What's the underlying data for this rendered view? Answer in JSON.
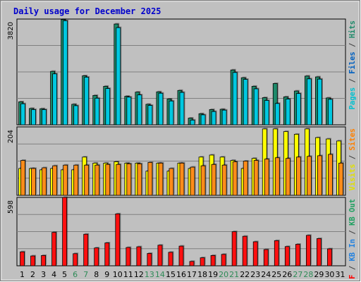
{
  "chart_data": {
    "type": "bar",
    "title": "Daily usage for December 2025",
    "background": "#c0c0c0",
    "categories": [
      "1",
      "2",
      "3",
      "4",
      "5",
      "6",
      "7",
      "8",
      "9",
      "10",
      "11",
      "12",
      "13",
      "14",
      "15",
      "16",
      "17",
      "18",
      "19",
      "20",
      "21",
      "22",
      "23",
      "24",
      "25",
      "26",
      "27",
      "28",
      "29",
      "30",
      "31"
    ],
    "weekend_days": [
      "6",
      "7",
      "13",
      "14",
      "20",
      "21",
      "27",
      "28"
    ],
    "weekday_label_color": "#000000",
    "weekend_label_color": "#2e8b57",
    "panels": [
      {
        "id": "hits-files-pages",
        "ymax_label": "3820",
        "ylim": [
          0,
          3820
        ],
        "side_labels": [
          {
            "text": "Pages",
            "color": "#00c0d0"
          },
          {
            "text": " / ",
            "color": "#404040"
          },
          {
            "text": "Files",
            "color": "#0060c0"
          },
          {
            "text": " / ",
            "color": "#404040"
          },
          {
            "text": "Hits",
            "color": "#1e8a6a"
          }
        ],
        "series": [
          {
            "name": "Hits",
            "color": "#1e8a6a",
            "values": [
              830,
              590,
              580,
              1930,
              3800,
              740,
              1770,
              1060,
              1390,
              3640,
              1030,
              1180,
              740,
              1190,
              930,
              1240,
              240,
              400,
              550,
              560,
              1980,
              1700,
              1390,
              980,
              1490,
              1010,
              1220,
              1760,
              1730,
              970,
              0
            ]
          },
          {
            "name": "Files",
            "color": "#00c8e0",
            "values": [
              760,
              550,
              550,
              1840,
              3760,
              690,
              1720,
              960,
              1310,
              3510,
              1000,
              1080,
              700,
              1140,
              860,
              1170,
              170,
              360,
              480,
              530,
              1890,
              1640,
              1300,
              880,
              770,
              930,
              1130,
              1660,
              1650,
              920,
              0
            ]
          }
        ]
      },
      {
        "id": "visits-sites",
        "ymax_label": "204",
        "ylim": [
          0,
          204
        ],
        "side_labels": [
          {
            "text": "Visits",
            "color": "#e0e000"
          },
          {
            "text": " / ",
            "color": "#404040"
          },
          {
            "text": "Sites",
            "color": "#ff8000"
          }
        ],
        "series": [
          {
            "name": "Visits",
            "color": "#ffff00",
            "values": [
              80,
              80,
              76,
              80,
              76,
              76,
              114,
              96,
              96,
              100,
              96,
              96,
              72,
              96,
              72,
              96,
              80,
              114,
              120,
              114,
              104,
              80,
              110,
              198,
              198,
              190,
              182,
              198,
              172,
              168,
              162
            ]
          },
          {
            "name": "Sites",
            "color": "#ff8c1a",
            "values": [
              104,
              80,
              82,
              88,
              90,
              90,
              90,
              90,
              92,
              92,
              94,
              94,
              98,
              96,
              80,
              96,
              84,
              88,
              92,
              90,
              100,
              102,
              104,
              108,
              112,
              110,
              114,
              116,
              118,
              122,
              96
            ]
          }
        ]
      },
      {
        "id": "kb",
        "ymax_label": "598",
        "ylim": [
          0,
          598
        ],
        "side_labels": [
          {
            "text": "KB F",
            "color": "#ff0000"
          },
          {
            "text": " / ",
            "color": "#404040"
          },
          {
            "text": "KB In",
            "color": "#2080e0"
          },
          {
            "text": " / ",
            "color": "#404040"
          },
          {
            "text": "KB Out",
            "color": "#1ea060"
          }
        ],
        "series": [
          {
            "name": "KB F",
            "color": "#ff1010",
            "values": [
              122,
              86,
              90,
              292,
              598,
              106,
              276,
              156,
              200,
              454,
              160,
              166,
              108,
              180,
              118,
              172,
              38,
              70,
              90,
              100,
              298,
              258,
              210,
              142,
              220,
              168,
              188,
              266,
              238,
              148,
              0
            ]
          }
        ]
      }
    ]
  }
}
